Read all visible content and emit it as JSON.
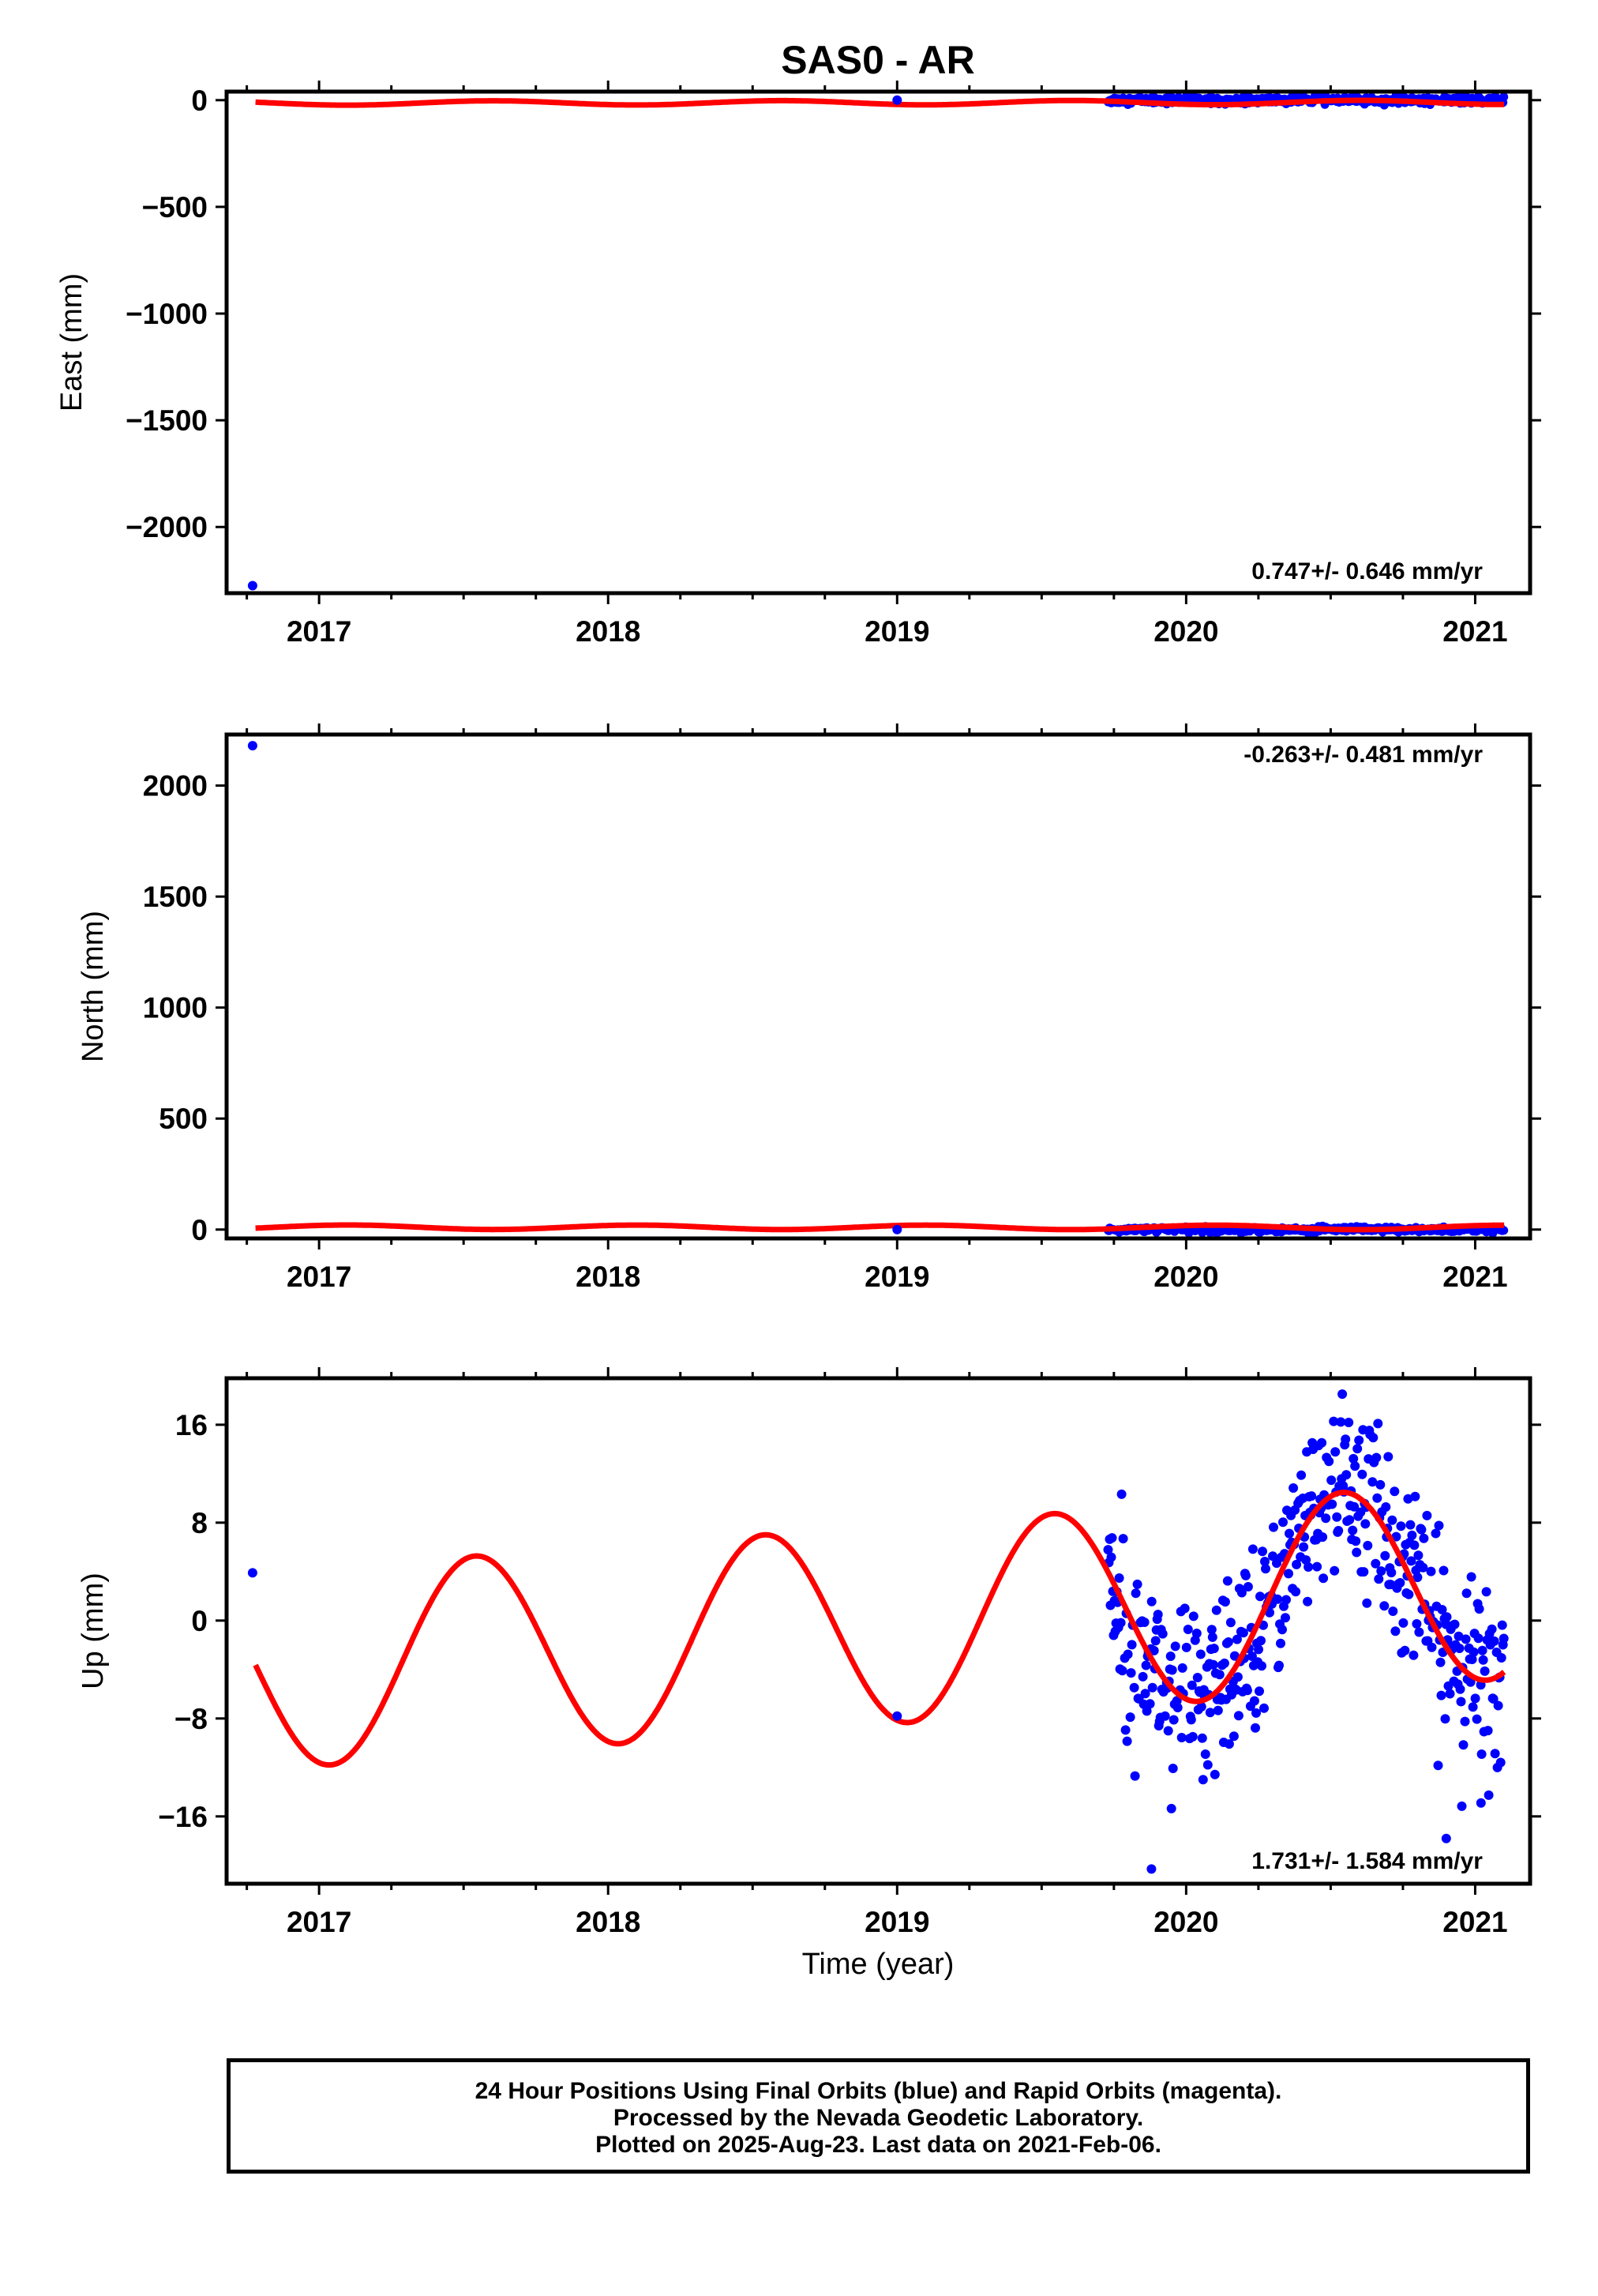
{
  "title": "SAS0 - AR",
  "colors": {
    "final_orbits": "#0000ff",
    "model_fit": "#ff0000",
    "frame": "#000000"
  },
  "caption": {
    "line1": "24 Hour Positions Using Final Orbits (blue) and Rapid Orbits (magenta).",
    "line2": "Processed by the Nevada Geodetic Laboratory.",
    "line3": "Plotted on 2025-Aug-23. Last data on 2021-Feb-06."
  },
  "chart_data": [
    {
      "type": "scatter",
      "panel": "east",
      "title": "SAS0 - AR",
      "xlabel": "",
      "ylabel": "East (mm)",
      "xlim": [
        2016.68,
        2021.19
      ],
      "ylim": [
        -2310,
        40
      ],
      "xticks": [
        2017,
        2018,
        2019,
        2020,
        2021
      ],
      "yticks": [
        0,
        -500,
        -1000,
        -1500,
        -2000
      ],
      "yticklabels": [
        "0",
        "−500",
        "−1000",
        "−1500",
        "−2000"
      ],
      "rate_label": "0.747+/- 0.646 mm/yr",
      "outliers": [
        {
          "x": 2016.77,
          "y": -2275
        },
        {
          "x": 2019.0,
          "y": 0
        }
      ],
      "dense_data": {
        "x_start": 2019.73,
        "x_end": 2021.1,
        "y_center": 0,
        "y_scatter": 8
      },
      "model": {
        "offset": -12,
        "amplitude": 10,
        "phase_year": 0.6,
        "trend": 0.747,
        "x_start": 2016.78,
        "x_end": 2021.1
      }
    },
    {
      "type": "scatter",
      "panel": "north",
      "xlabel": "",
      "ylabel": "North (mm)",
      "xlim": [
        2016.68,
        2021.19
      ],
      "ylim": [
        -40,
        2230
      ],
      "xticks": [
        2017,
        2018,
        2019,
        2020,
        2021
      ],
      "yticks": [
        0,
        500,
        1000,
        1500,
        2000
      ],
      "yticklabels": [
        "0",
        "500",
        "1000",
        "1500",
        "2000"
      ],
      "rate_label": "-0.263+/- 0.481 mm/yr",
      "outliers": [
        {
          "x": 2016.77,
          "y": 2180
        },
        {
          "x": 2019.0,
          "y": 0
        }
      ],
      "dense_data": {
        "x_start": 2019.73,
        "x_end": 2021.1,
        "y_center": 0,
        "y_scatter": 6
      },
      "model": {
        "offset": 10,
        "amplitude": 10,
        "phase_year": 0.1,
        "trend": -0.263,
        "x_start": 2016.78,
        "x_end": 2021.1
      }
    },
    {
      "type": "scatter",
      "panel": "up",
      "xlabel": "Time (year)",
      "ylabel": "Up (mm)",
      "xlim": [
        2016.68,
        2021.19
      ],
      "ylim": [
        -21.5,
        19.8
      ],
      "xticks": [
        2017,
        2018,
        2019,
        2020,
        2021
      ],
      "yticks": [
        16,
        8,
        0,
        -8,
        -16
      ],
      "yticklabels": [
        "16",
        "8",
        "0",
        "−8",
        "−16"
      ],
      "rate_label": "1.731+/- 1.584 mm/yr",
      "outliers": [
        {
          "x": 2016.77,
          "y": 3.9
        },
        {
          "x": 2019.0,
          "y": -7.8
        },
        {
          "x": 2019.88,
          "y": -20.3
        },
        {
          "x": 2020.9,
          "y": -17.8
        },
        {
          "x": 2021.02,
          "y": -14.9
        },
        {
          "x": 2020.54,
          "y": 18.5
        }
      ],
      "dense_data": {
        "x_start": 2019.73,
        "x_end": 2021.1,
        "y_scatter": 3.6
      },
      "model": {
        "offset": -0.3,
        "amplitude": 8.1,
        "phase_year": 0.54,
        "trend": 1.731,
        "ref_year": 2019.0,
        "x_start": 2016.78,
        "x_end": 2021.1
      }
    }
  ]
}
